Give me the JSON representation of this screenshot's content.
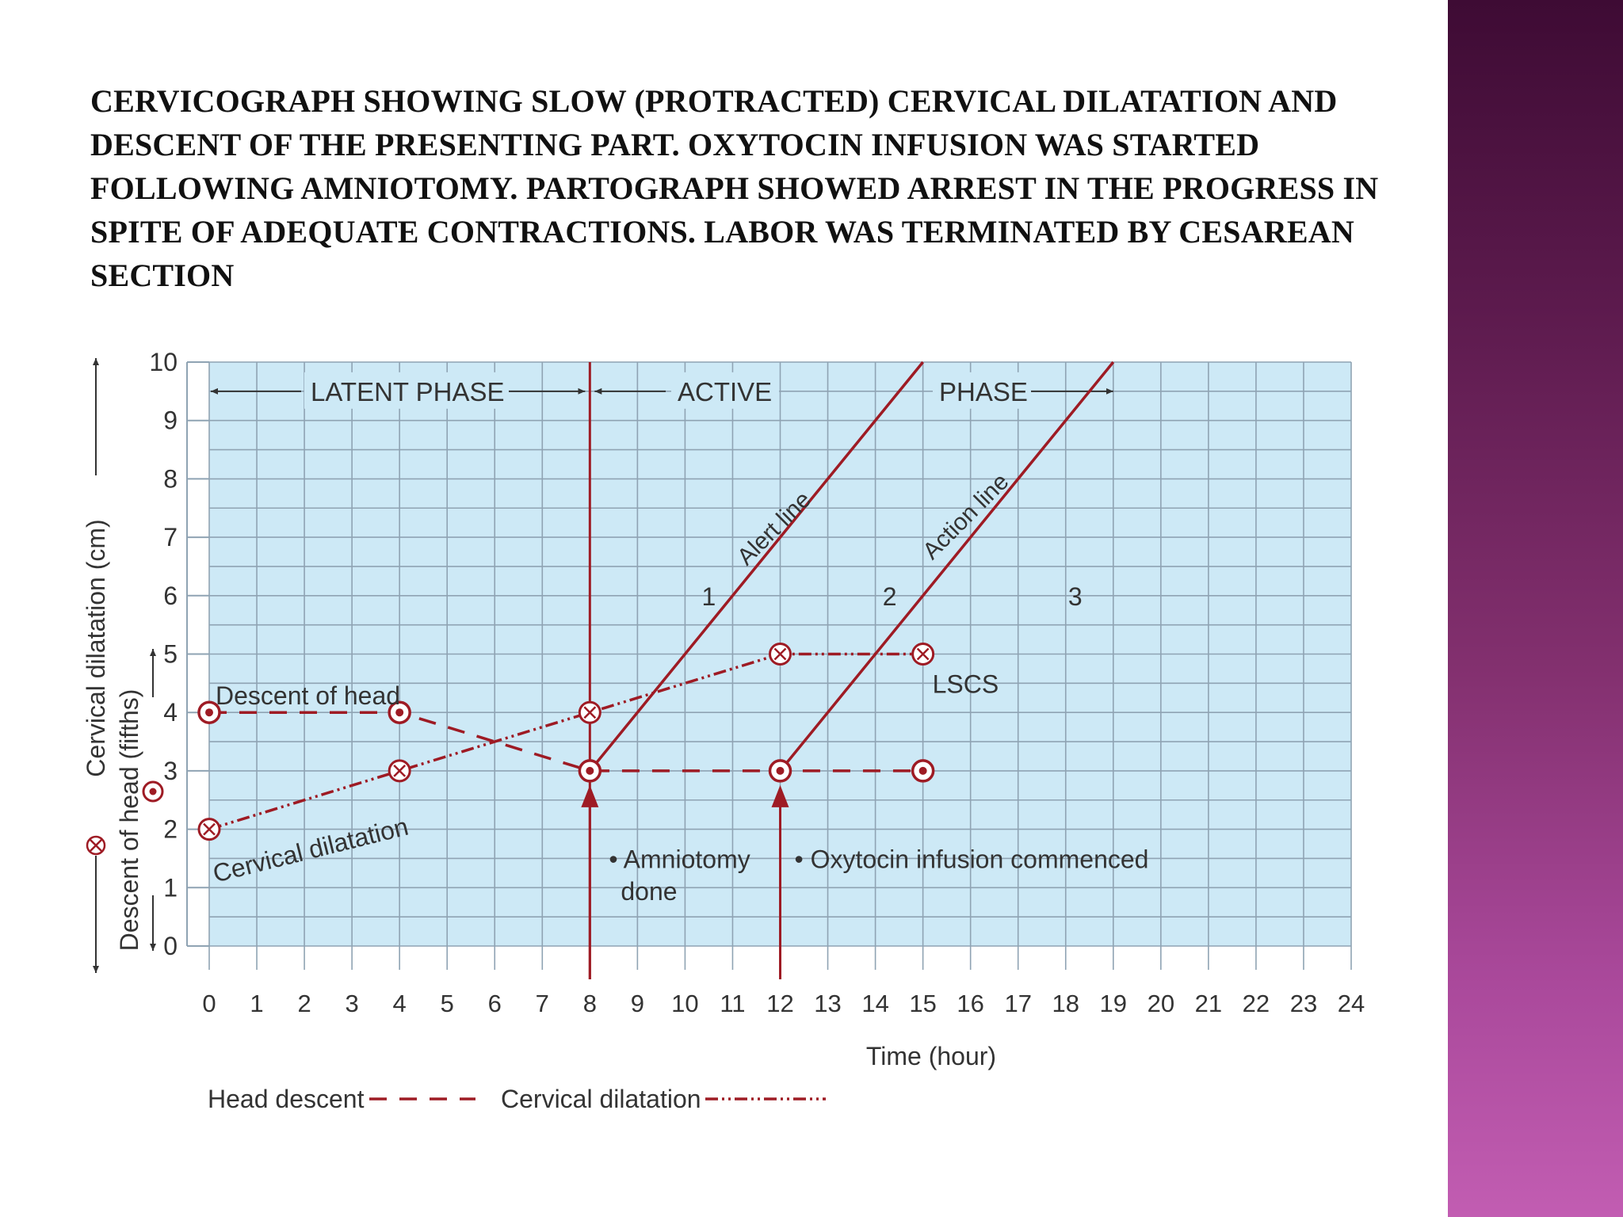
{
  "slide": {
    "title": "CERVICOGRAPH SHOWING SLOW (PROTRACTED) CERVICAL DILATATION AND DESCENT OF THE PRESENTING PART. OXYTOCIN INFUSION WAS STARTED FOLLOWING AMNIOTOMY. PARTOGRAPH SHOWED ARREST IN THE PROGRESS IN SPITE OF ADEQUATE CONTRACTIONS. LABOR WAS TERMINATED BY CESAREAN SECTION"
  },
  "colors": {
    "plot_bg": "#cde9f6",
    "grid": "#8fa3b3",
    "curve": "#9e1b24",
    "text": "#333333"
  },
  "chart_data": {
    "type": "line",
    "xlabel": "Time (hour)",
    "ylabel_outer": "Cervical dilatation (cm)",
    "ylabel_inner": "Descent of head (fifths)",
    "xlim": [
      0,
      24
    ],
    "ylim": [
      0,
      10
    ],
    "grid": true,
    "x_ticks": [
      "0",
      "1",
      "2",
      "3",
      "4",
      "5",
      "6",
      "7",
      "8",
      "9",
      "10",
      "11",
      "12",
      "13",
      "14",
      "15",
      "16",
      "17",
      "18",
      "19",
      "20",
      "21",
      "22",
      "23",
      "24"
    ],
    "y_ticks": [
      "0",
      "1",
      "2",
      "3",
      "4",
      "5",
      "6",
      "7",
      "8",
      "9",
      "10"
    ],
    "series": [
      {
        "name": "Cervical dilatation",
        "style": "dash-dot-dot",
        "marker": "circle-x",
        "x": [
          0,
          4,
          8,
          12,
          15
        ],
        "y": [
          2,
          3,
          4,
          5,
          5
        ]
      },
      {
        "name": "Head descent",
        "style": "dashed",
        "marker": "circle-dot",
        "x": [
          0,
          4,
          8,
          12,
          15
        ],
        "y": [
          4,
          4,
          3,
          3,
          3
        ]
      },
      {
        "name": "Alert line",
        "style": "solid",
        "x": [
          8,
          15
        ],
        "y": [
          3,
          10
        ]
      },
      {
        "name": "Action line",
        "style": "solid",
        "x": [
          12,
          19
        ],
        "y": [
          3,
          10
        ]
      }
    ],
    "vertical_line": {
      "x": 8
    },
    "phase_labels": {
      "latent": "LATENT PHASE",
      "active": "ACTIVE",
      "phase": "PHASE"
    },
    "zones": [
      "1",
      "2",
      "3"
    ],
    "annotations": {
      "descent_of_head": "Descent of head",
      "cervical_dilatation": "Cervical dilatation",
      "lscs": "LSCS",
      "amniotomy_line1": "• Amniotomy",
      "amniotomy_line2": "done",
      "oxytocin": "• Oxytocin infusion commenced"
    },
    "arrows_at_x": [
      8,
      12
    ],
    "legend": {
      "head_descent": "Head descent",
      "cervical_dilatation": "Cervical dilatation",
      "position": "bottom-left"
    }
  }
}
